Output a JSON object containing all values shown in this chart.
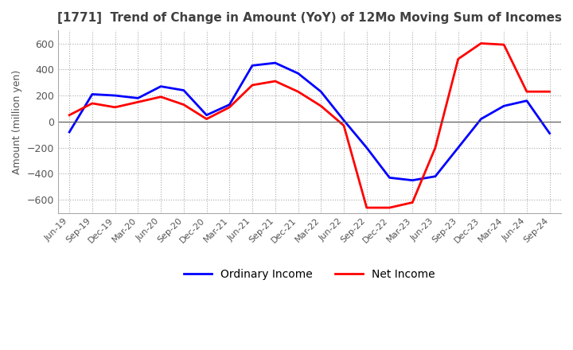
{
  "title": "[1771]  Trend of Change in Amount (YoY) of 12Mo Moving Sum of Incomes",
  "ylabel": "Amount (million yen)",
  "ylim": [
    -700,
    700
  ],
  "yticks": [
    -600,
    -400,
    -200,
    0,
    200,
    400,
    600
  ],
  "x_labels": [
    "Jun-19",
    "Sep-19",
    "Dec-19",
    "Mar-20",
    "Jun-20",
    "Sep-20",
    "Dec-20",
    "Mar-21",
    "Jun-21",
    "Sep-21",
    "Dec-21",
    "Mar-22",
    "Jun-22",
    "Sep-22",
    "Dec-22",
    "Mar-23",
    "Jun-23",
    "Sep-23",
    "Dec-23",
    "Mar-24",
    "Jun-24",
    "Sep-24"
  ],
  "ordinary_income": [
    -80,
    210,
    200,
    180,
    270,
    240,
    50,
    130,
    430,
    450,
    370,
    230,
    10,
    -200,
    -430,
    -450,
    -420,
    -200,
    20,
    120,
    160,
    -90
  ],
  "net_income": [
    50,
    140,
    110,
    150,
    190,
    130,
    20,
    110,
    280,
    310,
    230,
    120,
    -30,
    -660,
    -660,
    -620,
    -200,
    480,
    600,
    590,
    230,
    230
  ],
  "ordinary_color": "#0000ff",
  "net_color": "#ff0000",
  "background_color": "#ffffff",
  "grid_color": "#aaaaaa",
  "title_color": "#404040",
  "legend_labels": [
    "Ordinary Income",
    "Net Income"
  ]
}
